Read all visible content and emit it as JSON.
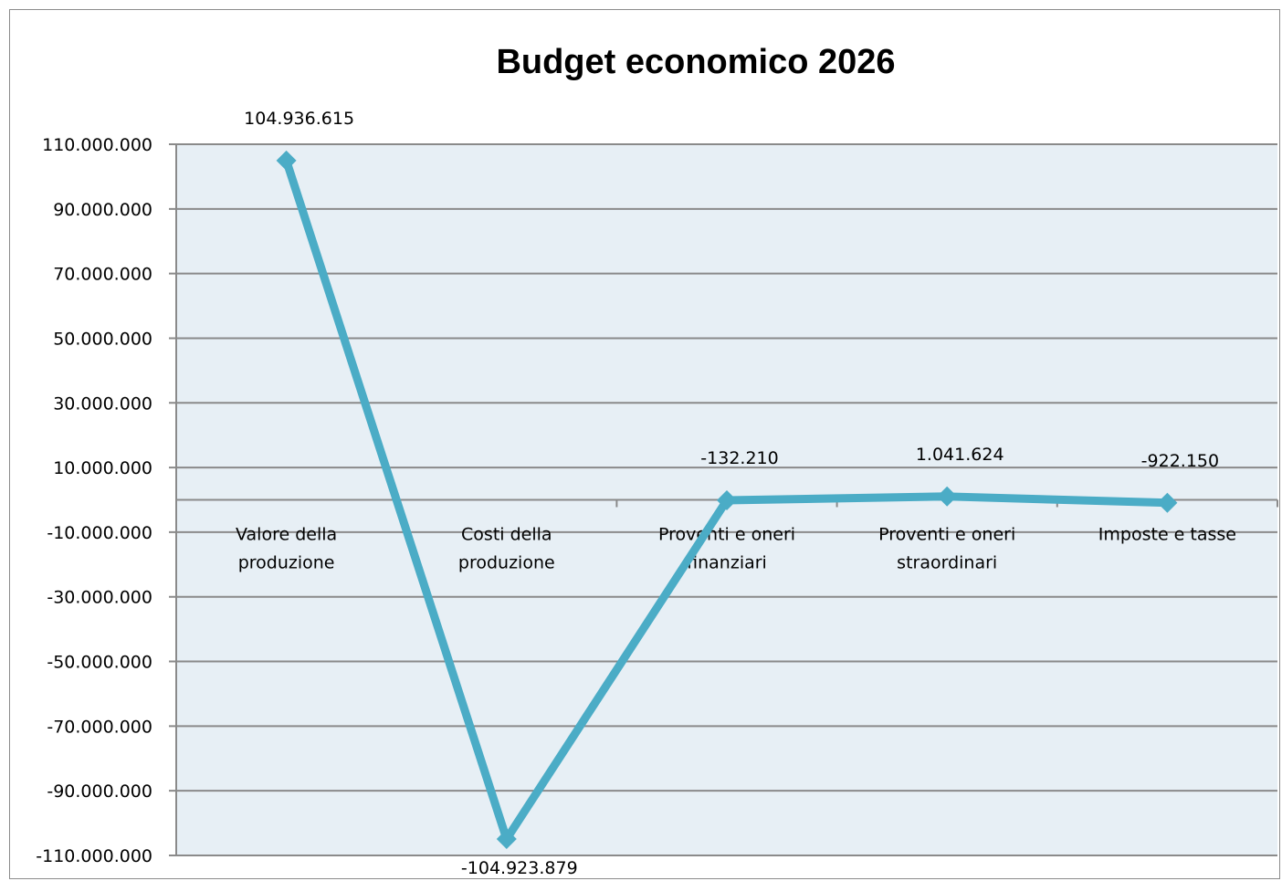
{
  "chart_data": {
    "type": "line",
    "title": "Budget economico 2026",
    "categories": [
      [
        "Valore della",
        "produzione"
      ],
      [
        "Costi della",
        "produzione"
      ],
      [
        "Proventi e oneri",
        "finanziari"
      ],
      [
        "Proventi e oneri",
        "straordinari"
      ],
      [
        "Imposte e tasse"
      ]
    ],
    "values": [
      104936615,
      -104923879,
      -132210,
      1041624,
      -922150
    ],
    "data_labels": [
      "104.936.615",
      "-104.923.879",
      "-132.210",
      "1.041.624",
      "-922.150"
    ],
    "y_ticks": [
      "110.000.000",
      "90.000.000",
      "70.000.000",
      "50.000.000",
      "30.000.000",
      "10.000.000",
      "-10.000.000",
      "-30.000.000",
      "-50.000.000",
      "-70.000.000",
      "-90.000.000",
      "-110.000.000"
    ],
    "y_tick_values": [
      110000000,
      90000000,
      70000000,
      50000000,
      30000000,
      10000000,
      -10000000,
      -30000000,
      -50000000,
      -70000000,
      -90000000,
      -110000000
    ],
    "ylim": [
      -110000000,
      110000000
    ],
    "xlabel": "",
    "ylabel": "",
    "grid": true,
    "legend": "none",
    "colors": {
      "line": "#4bacc6",
      "plot_background": "#e7eff5",
      "gridline": "#8a8a8a",
      "axis": "#8a8a8a"
    }
  }
}
